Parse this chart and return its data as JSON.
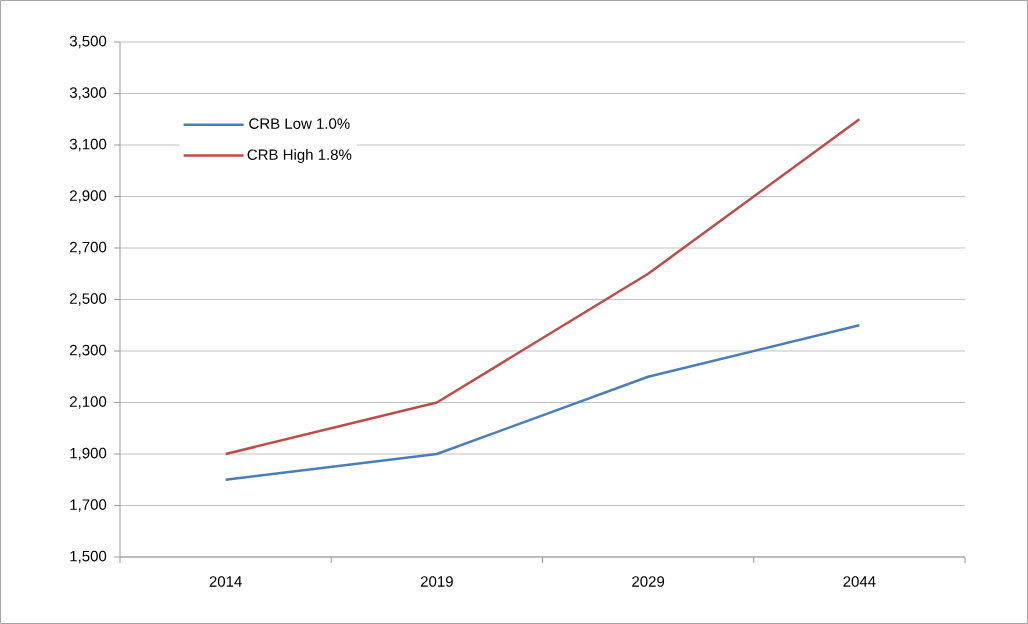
{
  "chart_data": {
    "type": "line",
    "categories": [
      "2014",
      "2019",
      "2029",
      "2044"
    ],
    "series": [
      {
        "name": "CRB Low 1.0%",
        "color": "#4a7ebb",
        "values": [
          1800,
          1900,
          2200,
          2400
        ]
      },
      {
        "name": "CRB High 1.8%",
        "color": "#be4b48",
        "values": [
          1900,
          2100,
          2600,
          3200
        ]
      }
    ],
    "ylim": [
      1500,
      3500
    ],
    "yticks": [
      {
        "value": 1500,
        "label": "1,500"
      },
      {
        "value": 1700,
        "label": "1,700"
      },
      {
        "value": 1900,
        "label": "1,900"
      },
      {
        "value": 2100,
        "label": "2,100"
      },
      {
        "value": 2300,
        "label": "2,300"
      },
      {
        "value": 2500,
        "label": "2,500"
      },
      {
        "value": 2700,
        "label": "2,700"
      },
      {
        "value": 2900,
        "label": "2,900"
      },
      {
        "value": 3100,
        "label": "3,100"
      },
      {
        "value": 3300,
        "label": "3,300"
      },
      {
        "value": 3500,
        "label": "3,500"
      }
    ],
    "grid": "y",
    "legend": "top left"
  }
}
